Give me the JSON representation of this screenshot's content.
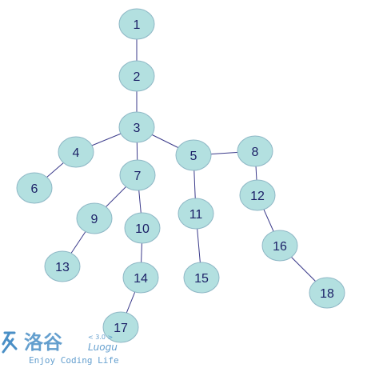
{
  "tree": {
    "nodes": [
      "1",
      "2",
      "3",
      "4",
      "5",
      "6",
      "7",
      "8",
      "9",
      "10",
      "11",
      "12",
      "13",
      "14",
      "15",
      "16",
      "17",
      "18"
    ],
    "edges": [
      [
        "1",
        "2"
      ],
      [
        "2",
        "3"
      ],
      [
        "3",
        "4"
      ],
      [
        "3",
        "7"
      ],
      [
        "3",
        "5"
      ],
      [
        "4",
        "6"
      ],
      [
        "7",
        "9"
      ],
      [
        "7",
        "10"
      ],
      [
        "9",
        "13"
      ],
      [
        "10",
        "14"
      ],
      [
        "14",
        "17"
      ],
      [
        "5",
        "8"
      ],
      [
        "5",
        "11"
      ],
      [
        "8",
        "12"
      ],
      [
        "11",
        "15"
      ],
      [
        "12",
        "16"
      ],
      [
        "16",
        "18"
      ]
    ],
    "node_color": "#b3e0e0",
    "edge_color": "#3a3a8a",
    "label_color": "#1b1f66"
  },
  "watermark": {
    "logo_chars": "洛谷",
    "version": "< 3.0 >",
    "brand": "Luogu",
    "slogan": "Enjoy Coding Life",
    "color": "#4a8fc6"
  }
}
